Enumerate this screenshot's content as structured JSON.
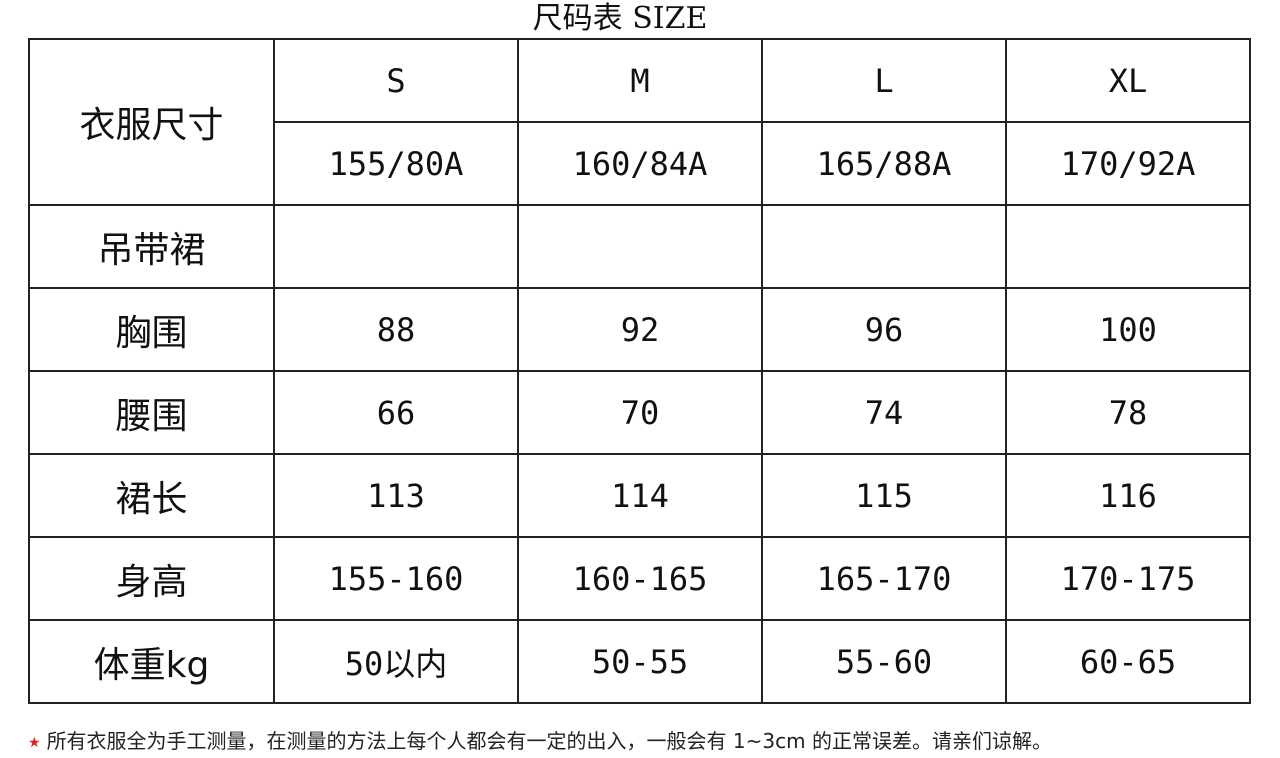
{
  "title": "尺码表 SIZE",
  "table": {
    "corner_label": "衣服尺寸",
    "sizes": [
      "S",
      "M",
      "L",
      "XL"
    ],
    "size_codes": [
      "155/80A",
      "160/84A",
      "165/88A",
      "170/92A"
    ],
    "section_label": "吊带裙",
    "rows": [
      {
        "label": "胸围",
        "values": [
          "88",
          "92",
          "96",
          "100"
        ]
      },
      {
        "label": "腰围",
        "values": [
          "66",
          "70",
          "74",
          "78"
        ]
      },
      {
        "label": "裙长",
        "values": [
          "113",
          "114",
          "115",
          "116"
        ]
      },
      {
        "label": "身高",
        "values": [
          "155-160",
          "160-165",
          "165-170",
          "170-175"
        ]
      },
      {
        "label": "体重kg",
        "values": [
          "50以内",
          "50-55",
          "55-60",
          "60-65"
        ]
      }
    ]
  },
  "note": {
    "icon": "star-icon",
    "star_color": "#dd2222",
    "text": "所有衣服全为手工测量，在测量的方法上每个人都会有一定的出入，一般会有 1~3cm 的正常误差。请亲们谅解。"
  }
}
